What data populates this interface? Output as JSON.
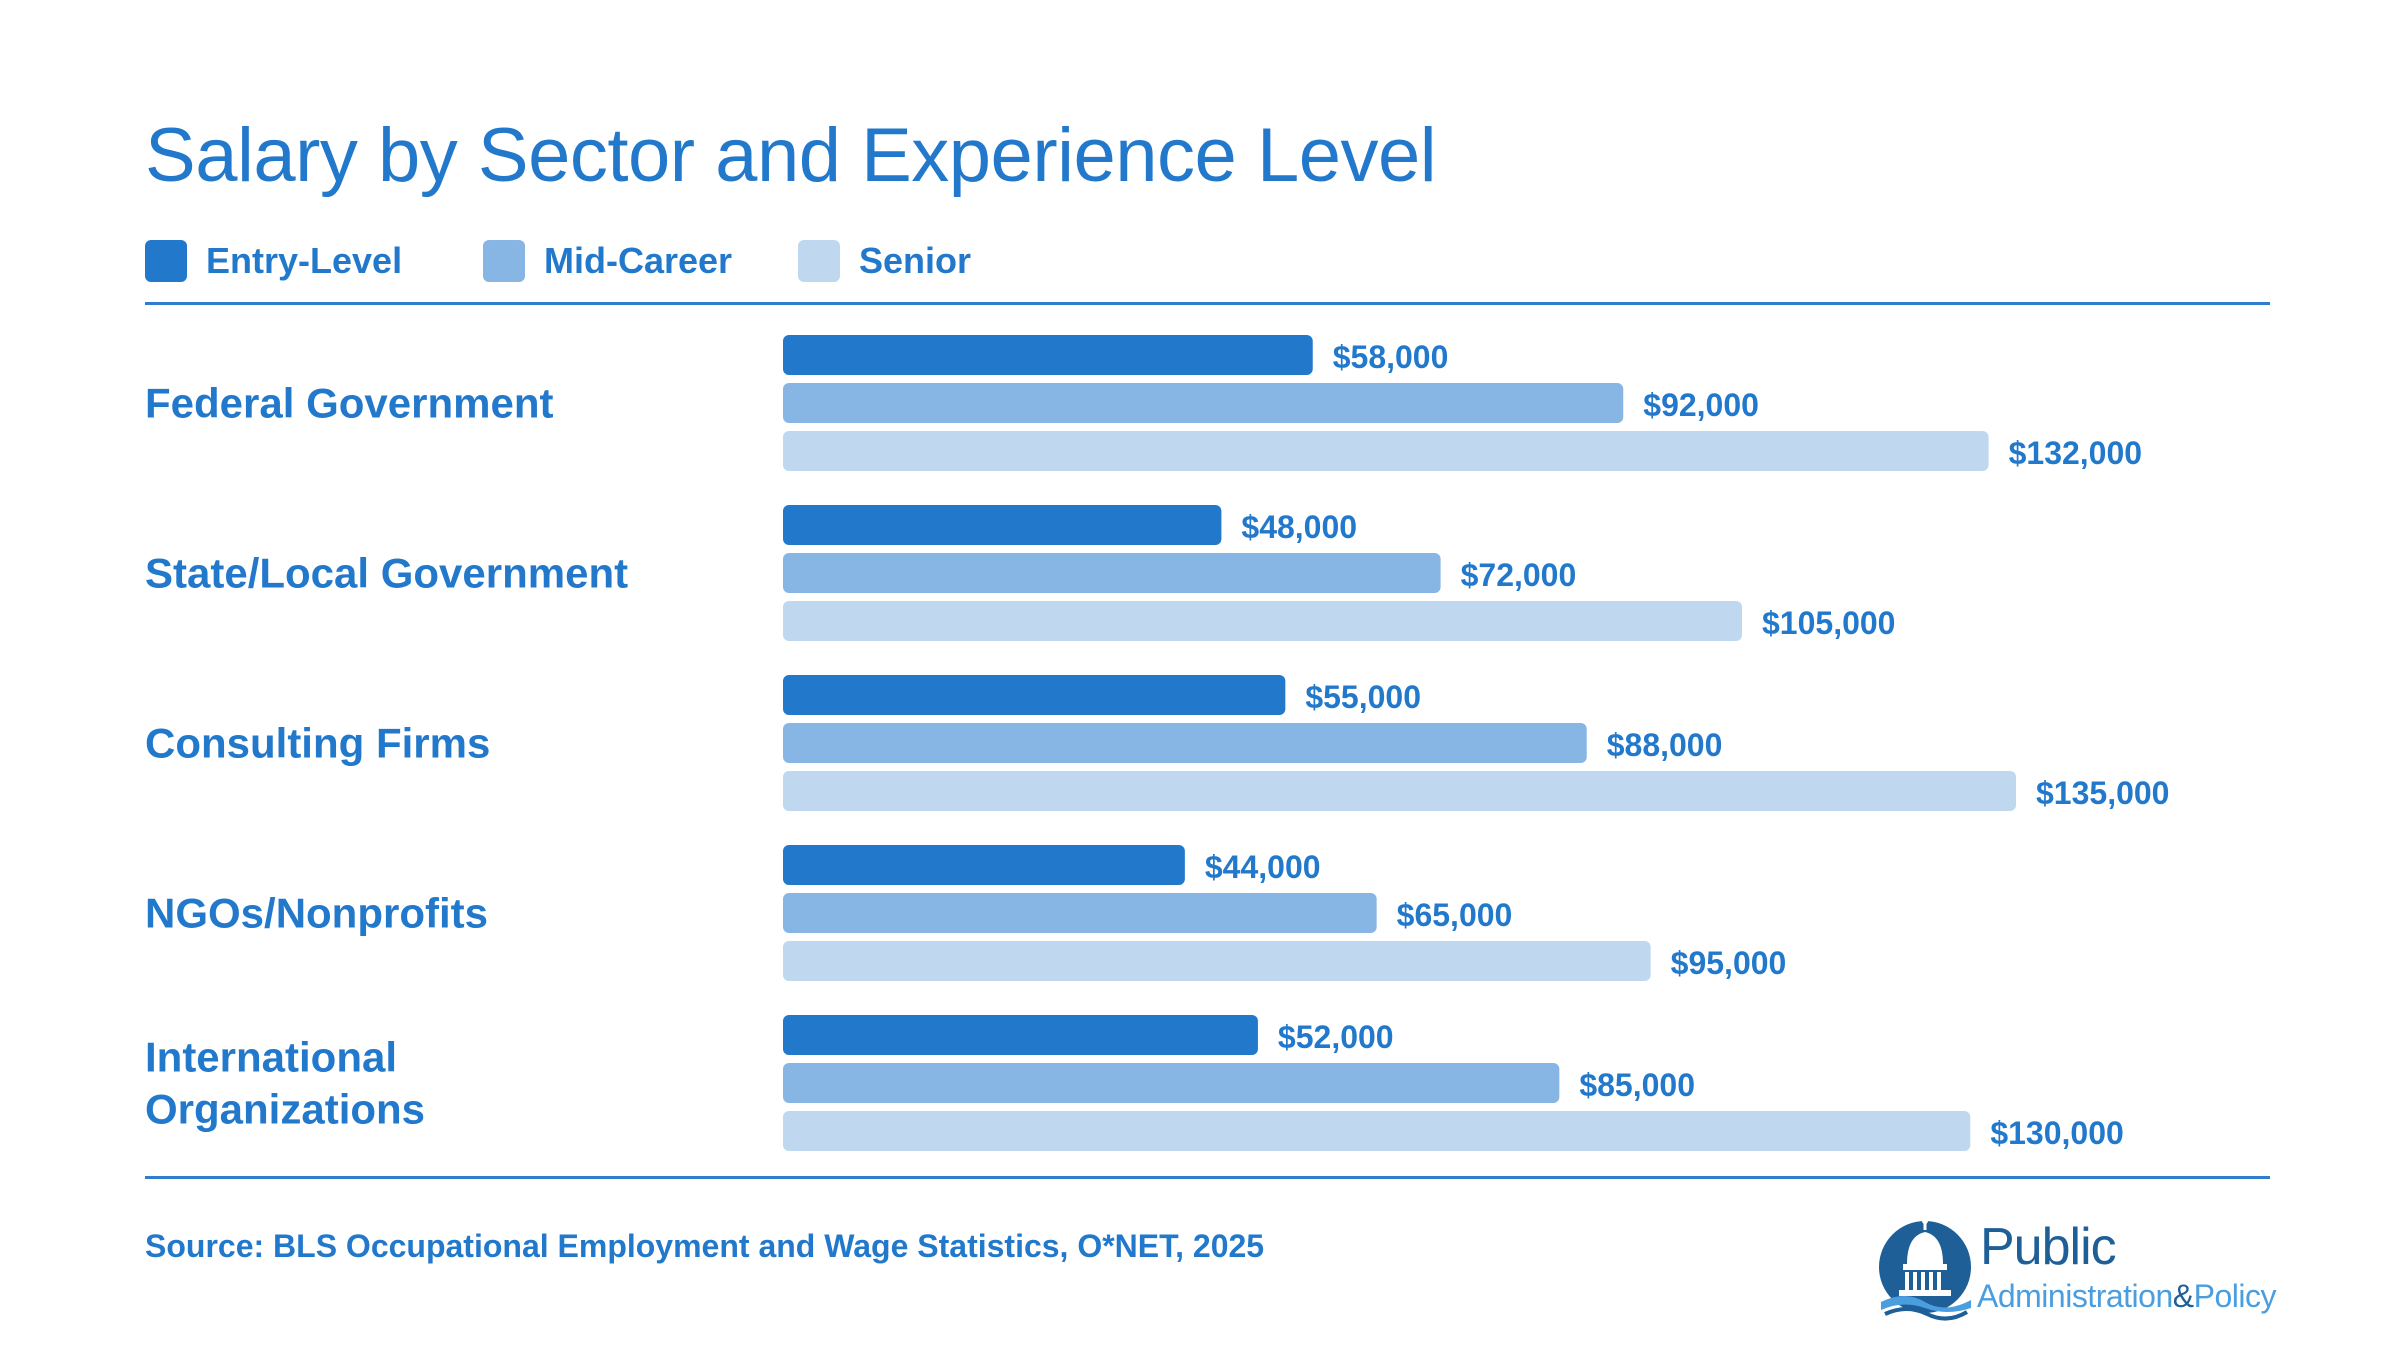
{
  "colors": {
    "title": "#2279cc",
    "rule": "#2f7dcc",
    "entry": "#2279cc",
    "mid": "#88b6e4",
    "senior": "#bfd8f0"
  },
  "chart_data": {
    "type": "bar",
    "orientation": "horizontal",
    "title": "Salary by Sector and Experience Level",
    "categories": [
      [
        "Federal Government"
      ],
      [
        "State/Local Government"
      ],
      [
        "Consulting Firms"
      ],
      [
        "NGOs/Nonprofits"
      ],
      [
        "International",
        "Organizations"
      ]
    ],
    "series": [
      {
        "name": "Entry-Level",
        "values": [
          58000,
          48000,
          55000,
          44000,
          52000
        ],
        "labels": [
          "$58,000",
          "$48,000",
          "$55,000",
          "$44,000",
          "$52,000"
        ]
      },
      {
        "name": "Mid-Career",
        "values": [
          92000,
          72000,
          88000,
          65000,
          85000
        ],
        "labels": [
          "$92,000",
          "$72,000",
          "$88,000",
          "$65,000",
          "$85,000"
        ]
      },
      {
        "name": "Senior",
        "values": [
          132000,
          105000,
          135000,
          95000,
          130000
        ],
        "labels": [
          "$132,000",
          "$105,000",
          "$135,000",
          "$95,000",
          "$130,000"
        ]
      }
    ],
    "xlim": [
      0,
      135000
    ],
    "grid": false,
    "legend": "top-left"
  },
  "footer": {
    "source": "Source: BLS Occupational Employment and Wage Statistics, O*NET, 2025"
  },
  "logo": {
    "line1": "Public",
    "line2a": "Administration",
    "line2b": "&",
    "line2c": "Policy",
    "icon": "capitol-dome-icon"
  }
}
